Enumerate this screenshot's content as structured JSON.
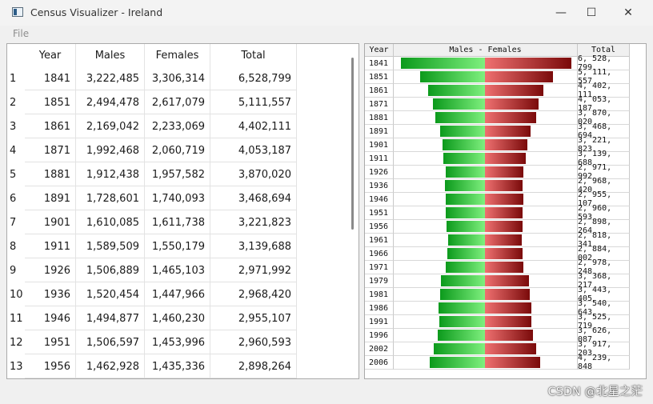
{
  "window": {
    "title": "Census Visualizer - Ireland",
    "minimize": "—",
    "maximize": "☐",
    "close": "✕"
  },
  "menu": {
    "file": "File"
  },
  "table": {
    "headers": [
      "Year",
      "Males",
      "Females",
      "Total"
    ],
    "rows": [
      {
        "index": "1",
        "year": "1841",
        "males": "3,222,485",
        "females": "3,306,314",
        "total": "6,528,799"
      },
      {
        "index": "2",
        "year": "1851",
        "males": "2,494,478",
        "females": "2,617,079",
        "total": "5,111,557"
      },
      {
        "index": "3",
        "year": "1861",
        "males": "2,169,042",
        "females": "2,233,069",
        "total": "4,402,111"
      },
      {
        "index": "4",
        "year": "1871",
        "males": "1,992,468",
        "females": "2,060,719",
        "total": "4,053,187"
      },
      {
        "index": "5",
        "year": "1881",
        "males": "1,912,438",
        "females": "1,957,582",
        "total": "3,870,020"
      },
      {
        "index": "6",
        "year": "1891",
        "males": "1,728,601",
        "females": "1,740,093",
        "total": "3,468,694"
      },
      {
        "index": "7",
        "year": "1901",
        "males": "1,610,085",
        "females": "1,611,738",
        "total": "3,221,823"
      },
      {
        "index": "8",
        "year": "1911",
        "males": "1,589,509",
        "females": "1,550,179",
        "total": "3,139,688"
      },
      {
        "index": "9",
        "year": "1926",
        "males": "1,506,889",
        "females": "1,465,103",
        "total": "2,971,992"
      },
      {
        "index": "10",
        "year": "1936",
        "males": "1,520,454",
        "females": "1,447,966",
        "total": "2,968,420"
      },
      {
        "index": "11",
        "year": "1946",
        "males": "1,494,877",
        "females": "1,460,230",
        "total": "2,955,107"
      },
      {
        "index": "12",
        "year": "1951",
        "males": "1,506,597",
        "females": "1,453,996",
        "total": "2,960,593"
      },
      {
        "index": "13",
        "year": "1956",
        "males": "1,462,928",
        "females": "1,435,336",
        "total": "2,898,264"
      }
    ]
  },
  "chart": {
    "headers": [
      "Year",
      "Males - Females",
      "Total"
    ],
    "colors": {
      "males": "#1aa82a",
      "females": "#b01818"
    },
    "rows": [
      {
        "year": "1841",
        "males": 3222485,
        "females": 3306314,
        "total": "6, 528, 799"
      },
      {
        "year": "1851",
        "males": 2494478,
        "females": 2617079,
        "total": "5, 111, 557"
      },
      {
        "year": "1861",
        "males": 2169042,
        "females": 2233069,
        "total": "4, 402, 111"
      },
      {
        "year": "1871",
        "males": 1992468,
        "females": 2060719,
        "total": "4, 053, 187"
      },
      {
        "year": "1881",
        "males": 1912438,
        "females": 1957582,
        "total": "3, 870, 020"
      },
      {
        "year": "1891",
        "males": 1728601,
        "females": 1740093,
        "total": "3, 468, 694"
      },
      {
        "year": "1901",
        "males": 1610085,
        "females": 1611738,
        "total": "3, 221, 823"
      },
      {
        "year": "1911",
        "males": 1589509,
        "females": 1550179,
        "total": "3, 139, 688"
      },
      {
        "year": "1926",
        "males": 1506889,
        "females": 1465103,
        "total": "2, 971, 992"
      },
      {
        "year": "1936",
        "males": 1520454,
        "females": 1447966,
        "total": "2, 968, 420"
      },
      {
        "year": "1946",
        "males": 1494877,
        "females": 1460230,
        "total": "2, 955, 107"
      },
      {
        "year": "1951",
        "males": 1506597,
        "females": 1453996,
        "total": "2, 960, 593"
      },
      {
        "year": "1956",
        "males": 1462928,
        "females": 1435336,
        "total": "2, 898, 264"
      },
      {
        "year": "1961",
        "males": 1416549,
        "females": 1401792,
        "total": "2, 818, 341"
      },
      {
        "year": "1966",
        "males": 1449032,
        "females": 1434970,
        "total": "2, 884, 002"
      },
      {
        "year": "1971",
        "males": 1495760,
        "females": 1482488,
        "total": "2, 978, 248"
      },
      {
        "year": "1979",
        "males": 1693272,
        "females": 1674945,
        "total": "3, 368, 217"
      },
      {
        "year": "1981",
        "males": 1729354,
        "females": 1714051,
        "total": "3, 443, 405"
      },
      {
        "year": "1986",
        "males": 1769690,
        "females": 1770953,
        "total": "3, 540, 643"
      },
      {
        "year": "1991",
        "males": 1753418,
        "females": 1772301,
        "total": "3, 525, 719"
      },
      {
        "year": "1996",
        "males": 1800232,
        "females": 1825855,
        "total": "3, 626, 087"
      },
      {
        "year": "2002",
        "males": 1946164,
        "females": 1971039,
        "total": "3, 917, 203"
      },
      {
        "year": "2006",
        "males": 2121171,
        "females": 2118677,
        "total": "4, 239, 848"
      }
    ]
  },
  "watermark": "CSDN @北星之茫"
}
